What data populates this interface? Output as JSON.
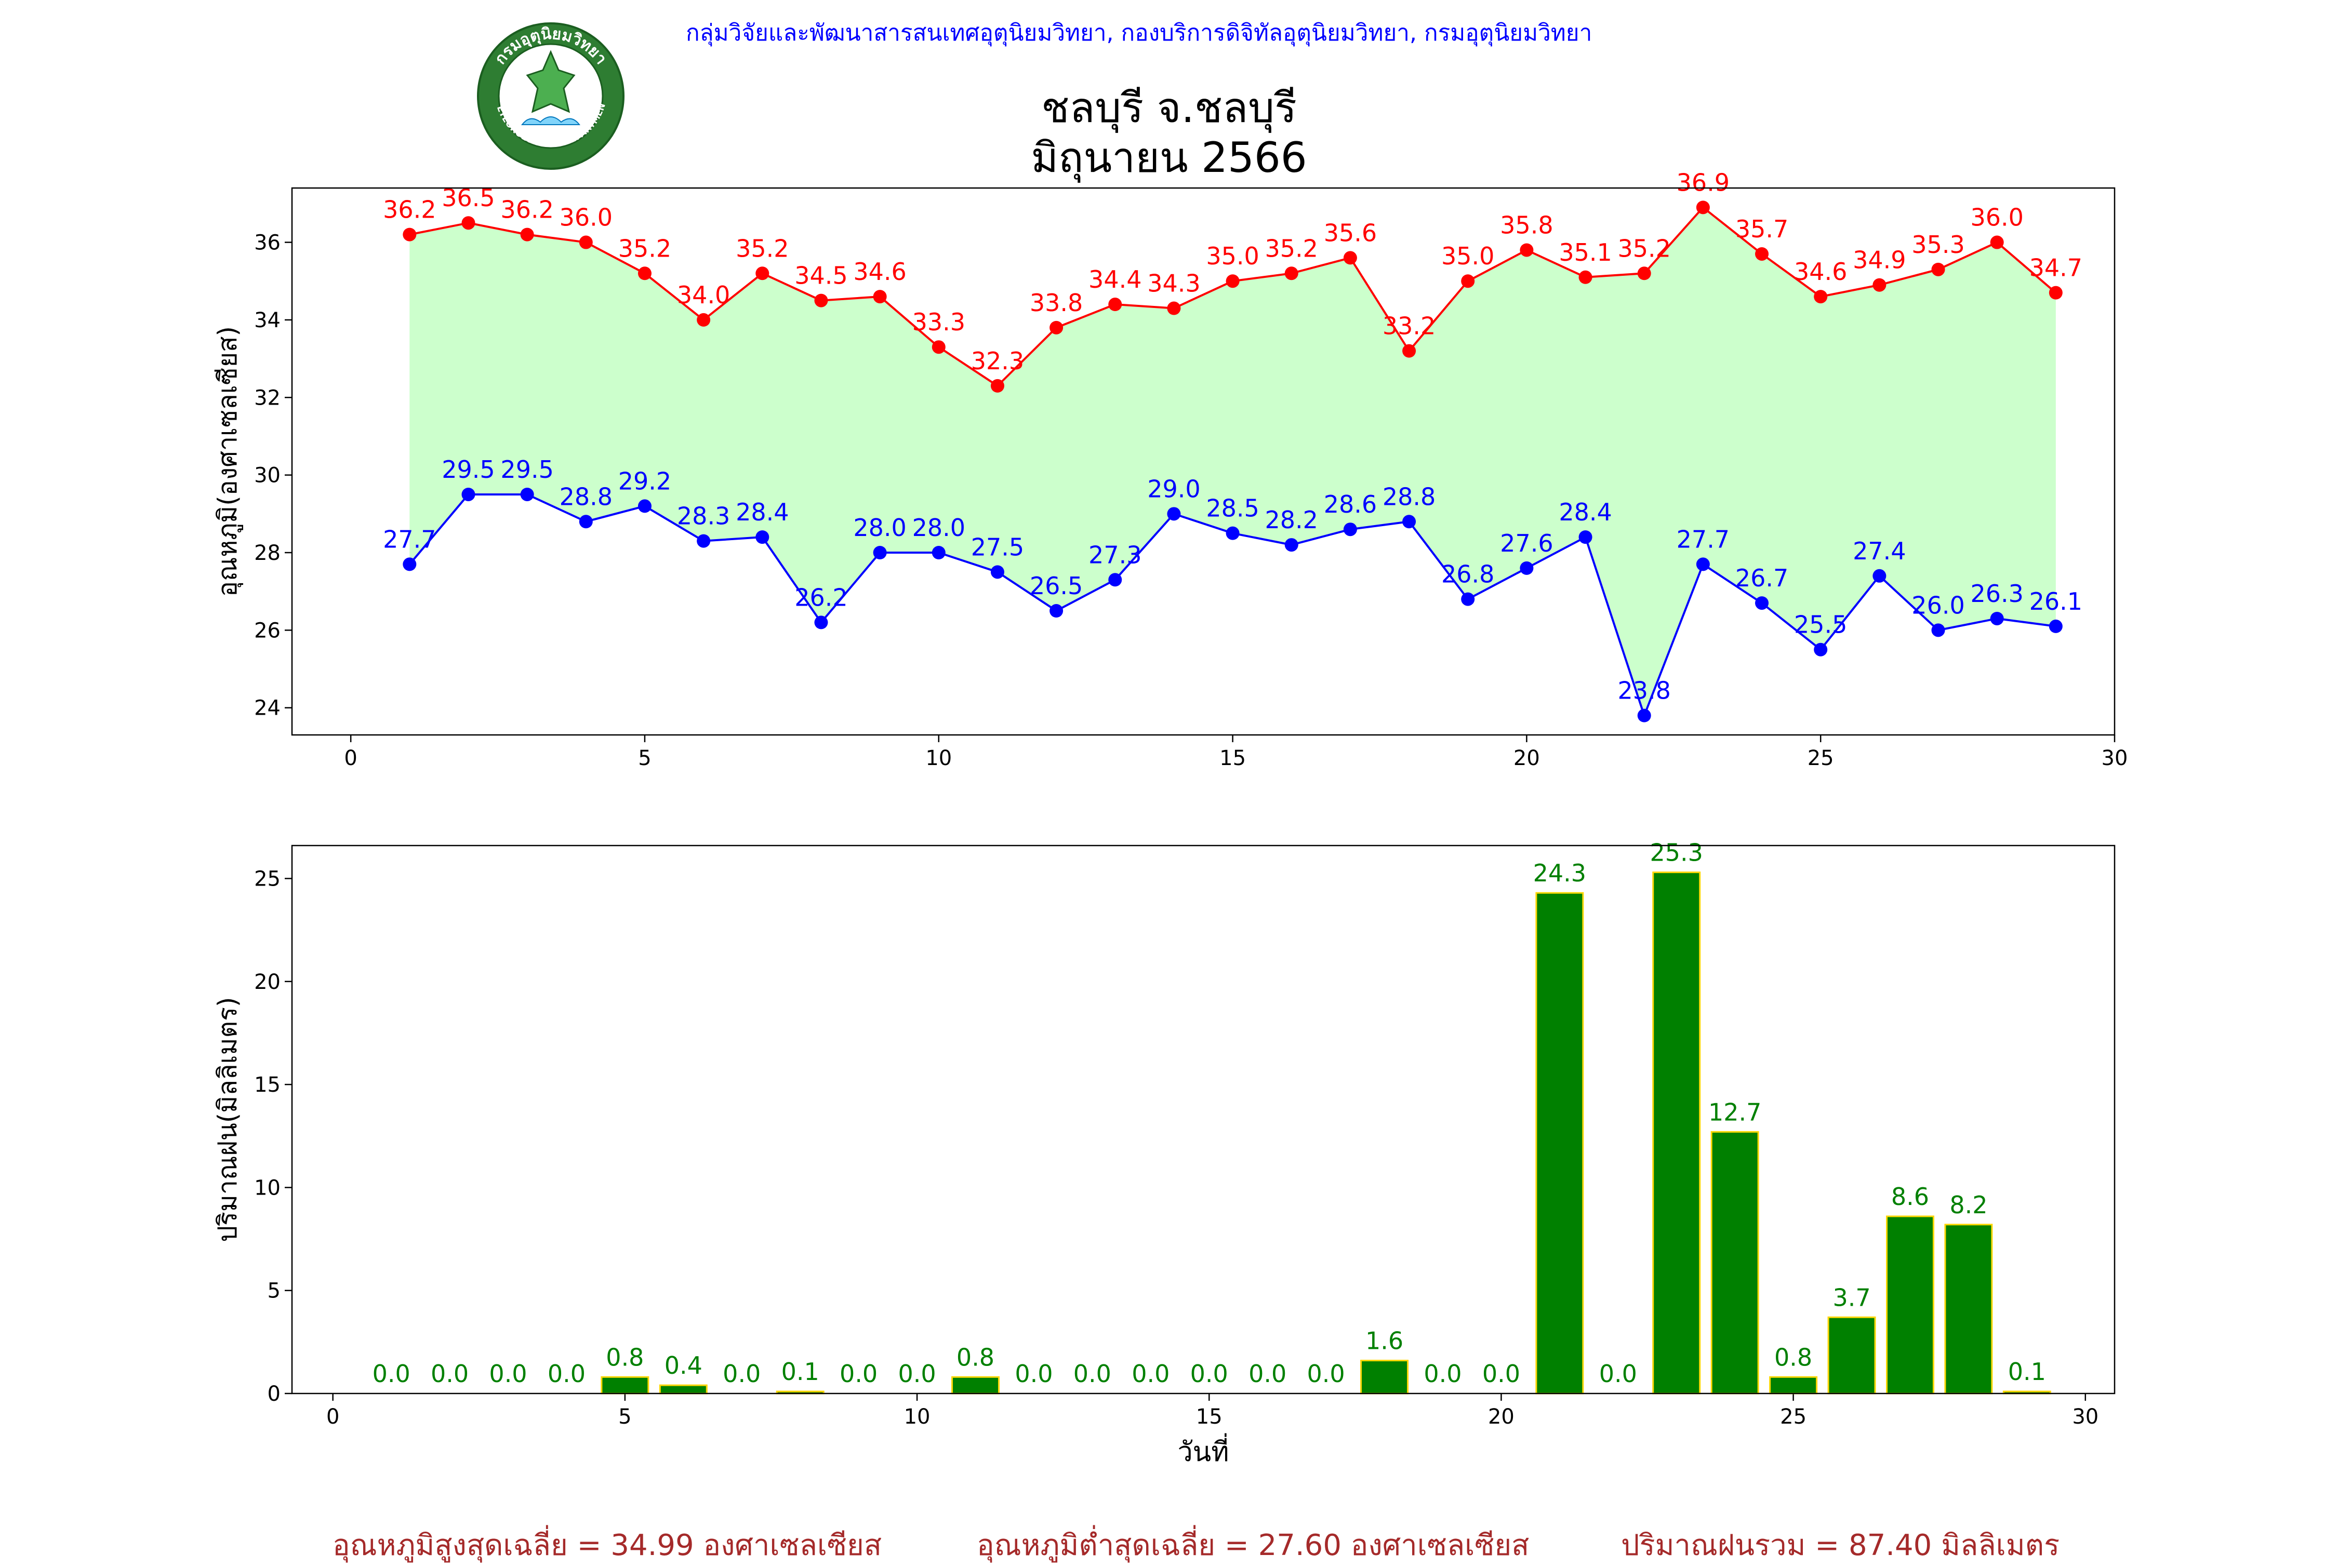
{
  "header": {
    "agency": "กลุ่มวิจัยและพัฒนาสารสนเทศอุตุนิยมวิทยา, กองบริการดิจิทัลอุตุนิยมวิทยา, กรมอุตุนิยมวิทยา",
    "logo_name": "thai-meteorological-department-seal",
    "logo_text_top": "กรมอุตุนิยมวิทยา",
    "logo_text_bottom": "METEOROLOGICAL DEPARTMENT"
  },
  "colors": {
    "max": "#ff0000",
    "min": "#0000ff",
    "fill": "#ccffcc",
    "bar": "#008000",
    "bar_edge": "#ffd700",
    "footer": "#a52a2a"
  },
  "chart_data": [
    {
      "type": "line",
      "title": "ชลบุรี จ.ชลบุรี\nมิถุนายน 2566",
      "title_lines": [
        "ชลบุรี จ.ชลบุรี",
        "มิถุนายน 2566"
      ],
      "xlabel": "",
      "ylabel": "อุณหภูมิ(องศาเซลเซียส)",
      "xlim": [
        -1,
        30
      ],
      "ylim": [
        23.3,
        37.4
      ],
      "xticks": [
        0,
        5,
        10,
        15,
        20,
        25,
        30
      ],
      "yticks": [
        24,
        26,
        28,
        30,
        32,
        34,
        36
      ],
      "x": [
        1,
        2,
        3,
        4,
        5,
        6,
        7,
        8,
        9,
        10,
        11,
        12,
        13,
        14,
        15,
        16,
        17,
        18,
        19,
        20,
        21,
        22,
        23,
        24,
        25,
        26,
        27,
        28,
        29
      ],
      "series": [
        {
          "key": "max",
          "values": [
            36.2,
            36.5,
            36.2,
            36.0,
            35.2,
            34.0,
            35.2,
            34.5,
            34.6,
            33.3,
            32.3,
            33.8,
            34.4,
            34.3,
            35.0,
            35.2,
            35.6,
            33.2,
            35.0,
            35.8,
            35.1,
            35.2,
            36.9,
            35.7,
            34.6,
            34.9,
            35.3,
            36.0,
            34.7
          ],
          "labels": [
            "36.2",
            "36.5",
            "36.2",
            "36.0",
            "35.2",
            "34.0",
            "35.2",
            "34.5",
            "34.6",
            "33.3",
            "32.3",
            "33.8",
            "34.4",
            "34.3",
            "35.0",
            "35.2",
            "35.6",
            "33.2",
            "35.0",
            "35.8",
            "35.1",
            "35.2",
            "36.9",
            "35.7",
            "34.6",
            "34.9",
            "35.3",
            "36.0",
            "34.7"
          ]
        },
        {
          "key": "min",
          "values": [
            27.7,
            29.5,
            29.5,
            28.8,
            29.2,
            28.3,
            28.4,
            26.2,
            28.0,
            28.0,
            27.5,
            26.5,
            27.3,
            29.0,
            28.5,
            28.2,
            28.6,
            28.8,
            26.8,
            27.6,
            28.4,
            23.8,
            27.7,
            26.7,
            25.5,
            27.4,
            26.0,
            26.3,
            26.1
          ],
          "labels": [
            "27.7",
            "29.5",
            "29.5",
            "28.8",
            "29.2",
            "28.3",
            "28.4",
            "26.2",
            "28.0",
            "28.0",
            "27.5",
            "26.5",
            "27.3",
            "29.0",
            "28.5",
            "28.2",
            "28.6",
            "28.8",
            "26.8",
            "27.6",
            "28.4",
            "23.8",
            "27.7",
            "26.7",
            "25.5",
            "27.4",
            "26.0",
            "26.3",
            "26.1"
          ]
        }
      ],
      "fill_between": true,
      "grid": false
    },
    {
      "type": "bar",
      "xlabel": "วันที่",
      "ylabel": "ปริมาณฝน(มิลลิเมตร)",
      "xlim": [
        -0.7,
        30.5
      ],
      "ylim": [
        0,
        26.6
      ],
      "xticks": [
        0,
        5,
        10,
        15,
        20,
        25,
        30
      ],
      "yticks": [
        0,
        5,
        10,
        15,
        20,
        25
      ],
      "x": [
        1,
        2,
        3,
        4,
        5,
        6,
        7,
        8,
        9,
        10,
        11,
        12,
        13,
        14,
        15,
        16,
        17,
        18,
        19,
        20,
        21,
        22,
        23,
        24,
        25,
        26,
        27,
        28,
        29
      ],
      "values": [
        0.0,
        0.0,
        0.0,
        0.0,
        0.8,
        0.4,
        0.0,
        0.1,
        0.0,
        0.0,
        0.8,
        0.0,
        0.0,
        0.0,
        0.0,
        0.0,
        0.0,
        1.6,
        0.0,
        0.0,
        24.3,
        0.0,
        25.3,
        12.7,
        0.8,
        3.7,
        8.6,
        8.2,
        0.1
      ],
      "labels": [
        "0.0",
        "0.0",
        "0.0",
        "0.0",
        "0.8",
        "0.4",
        "0.0",
        "0.1",
        "0.0",
        "0.0",
        "0.8",
        "0.0",
        "0.0",
        "0.0",
        "0.0",
        "0.0",
        "0.0",
        "1.6",
        "0.0",
        "0.0",
        "24.3",
        "0.0",
        "25.3",
        "12.7",
        "0.8",
        "3.7",
        "8.6",
        "8.2",
        "0.1"
      ],
      "grid": false
    }
  ],
  "footer": {
    "avg_max": "อุณหภูมิสูงสุดเฉลี่ย = 34.99 องศาเซลเซียส",
    "avg_min": "อุณหภูมิต่ำสุดเฉลี่ย = 27.60 องศาเซลเซียส",
    "total_rain": "ปริมาณฝนรวม = 87.40 มิลลิเมตร"
  }
}
